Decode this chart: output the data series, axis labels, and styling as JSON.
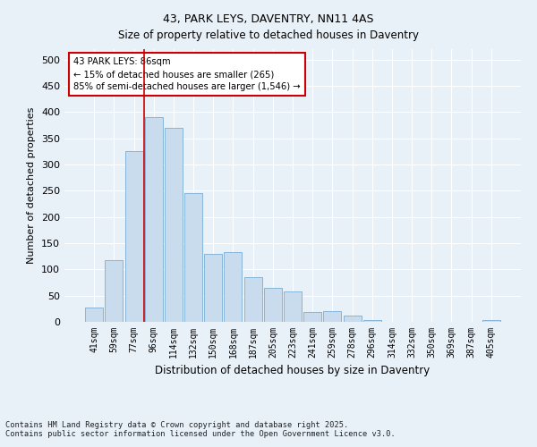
{
  "title": "43, PARK LEYS, DAVENTRY, NN11 4AS",
  "subtitle": "Size of property relative to detached houses in Daventry",
  "xlabel": "Distribution of detached houses by size in Daventry",
  "ylabel": "Number of detached properties",
  "bar_labels": [
    "41sqm",
    "59sqm",
    "77sqm",
    "96sqm",
    "114sqm",
    "132sqm",
    "150sqm",
    "168sqm",
    "187sqm",
    "205sqm",
    "223sqm",
    "241sqm",
    "259sqm",
    "278sqm",
    "296sqm",
    "314sqm",
    "332sqm",
    "350sqm",
    "369sqm",
    "387sqm",
    "405sqm"
  ],
  "bar_values": [
    28,
    118,
    325,
    390,
    370,
    245,
    130,
    133,
    85,
    65,
    58,
    18,
    20,
    12,
    3,
    0,
    0,
    0,
    0,
    0,
    3
  ],
  "bar_color": "#c9dcee",
  "bar_edge_color": "#7aaed4",
  "vline_x": 2.5,
  "vline_color": "#cc0000",
  "annotation_line1": "43 PARK LEYS: 86sqm",
  "annotation_line2": "← 15% of detached houses are smaller (265)",
  "annotation_line3": "85% of semi-detached houses are larger (1,546) →",
  "annotation_box_color": "#cc0000",
  "ylim": [
    0,
    520
  ],
  "yticks": [
    0,
    50,
    100,
    150,
    200,
    250,
    300,
    350,
    400,
    450,
    500
  ],
  "footnote1": "Contains HM Land Registry data © Crown copyright and database right 2025.",
  "footnote2": "Contains public sector information licensed under the Open Government Licence v3.0.",
  "bg_color": "#e8f0f8",
  "plot_bg_color": "#e8f0f8",
  "grid_color": "#ffffff",
  "title_fontsize": 9,
  "subtitle_fontsize": 8.5
}
